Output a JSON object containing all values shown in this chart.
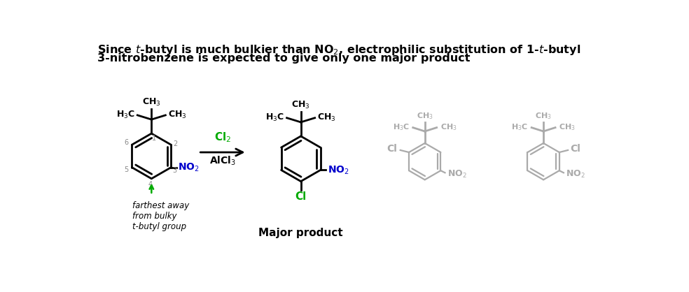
{
  "arrow_color": "#000000",
  "reagent_color": "#00aa00",
  "no2_color": "#0000cc",
  "cl_color": "#00aa00",
  "gray_color": "#aaaaaa",
  "annotation_color": "#00aa00",
  "bg_color": "#ffffff",
  "title1": "Since $\\it{t}$-butyl is much bulkier than NO$_2$, electrophilic substitution of 1-$\\it{t}$-butyl",
  "title2": "3-nitrobenzene is expected to give only one major product",
  "major_label": "Major product",
  "reagent1": "Cl$_2$",
  "reagent2": "AlCl$_3$",
  "annotation_text": "farthest away\nfrom bulky\nt-butyl group"
}
